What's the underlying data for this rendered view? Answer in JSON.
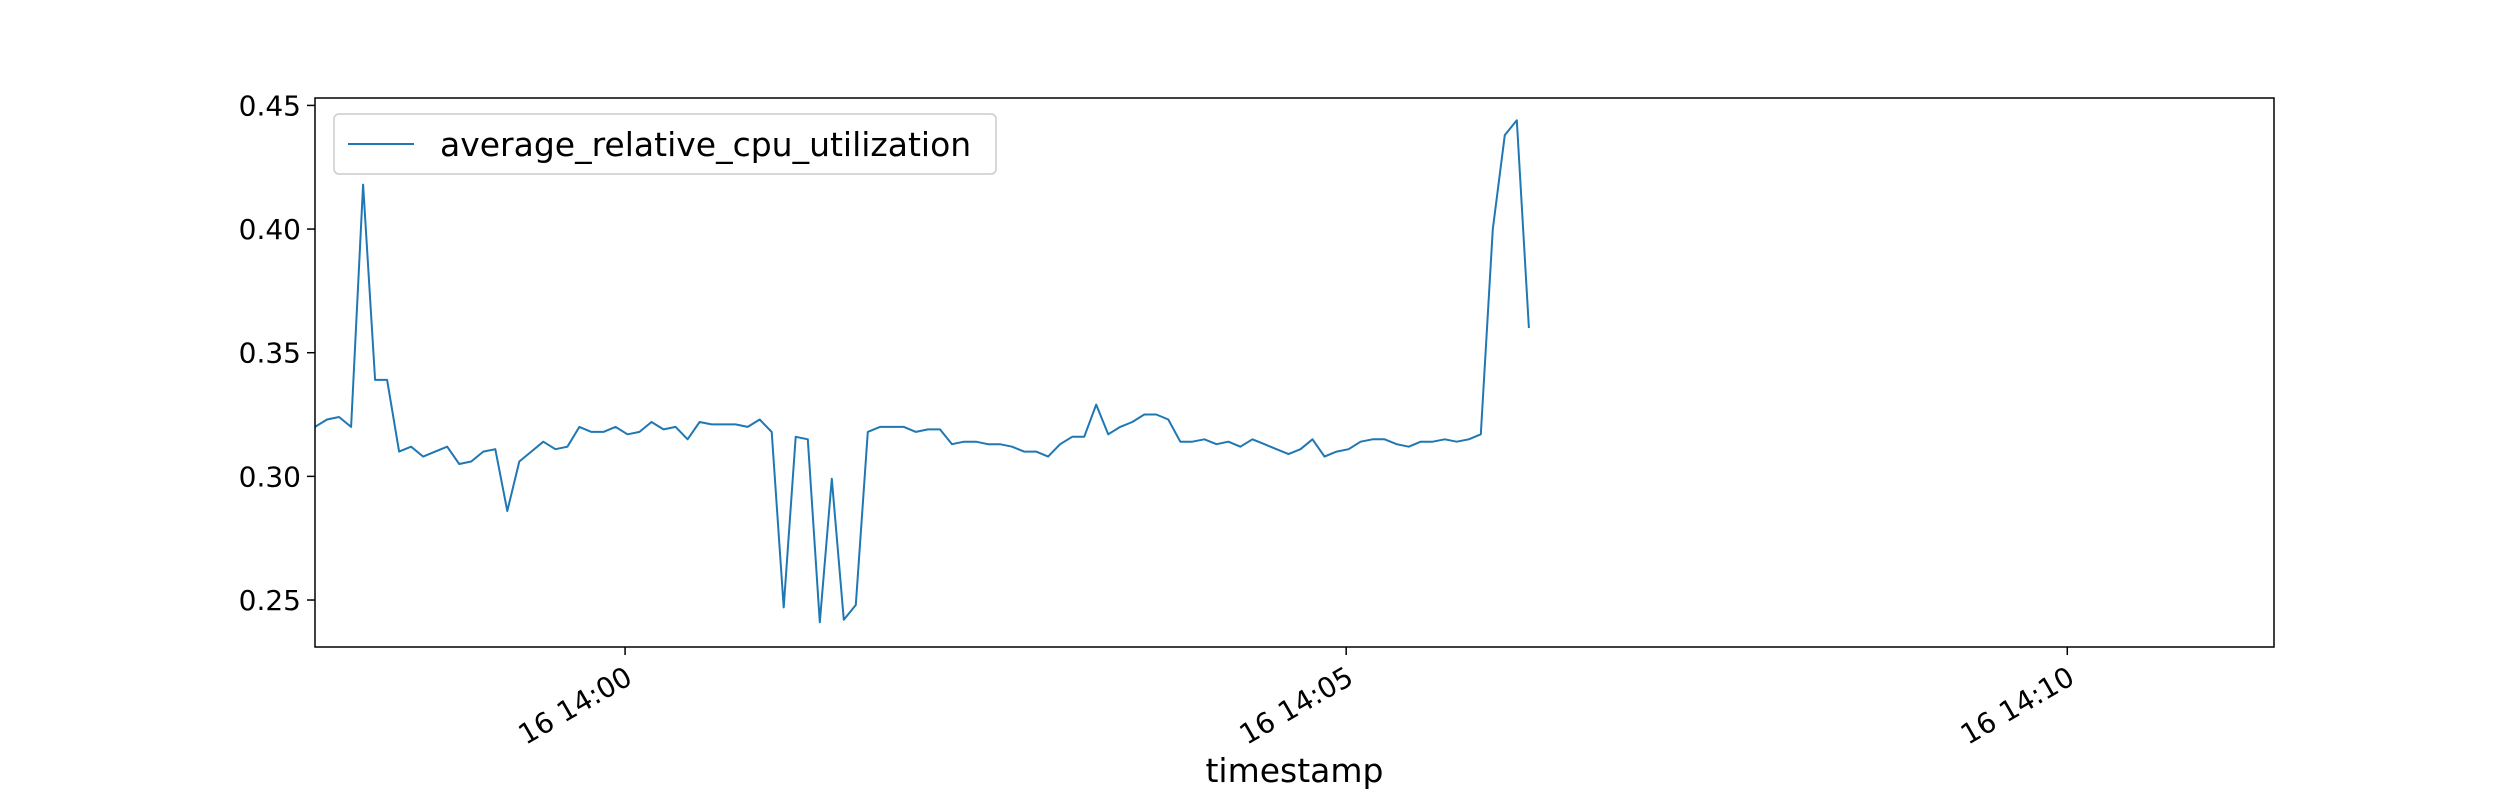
{
  "chart_data": {
    "type": "line",
    "title": "",
    "xlabel": "timestamp",
    "ylabel": "",
    "grid": false,
    "legend_placement": "upper-left",
    "x_start": "2024-01-16 13:57:51",
    "x_step_seconds": 5,
    "xlim": [
      "2024-01-16 13:57:51",
      "2024-01-16 14:11:26"
    ],
    "ylim": [
      0.231,
      0.453
    ],
    "x_ticks": [
      {
        "value": "2024-01-16 14:00:00",
        "label": "16 14:00"
      },
      {
        "value": "2024-01-16 14:05:00",
        "label": "16 14:05"
      },
      {
        "value": "2024-01-16 14:10:00",
        "label": "16 14:10"
      }
    ],
    "y_ticks": [
      {
        "value": 0.25,
        "label": "0.25"
      },
      {
        "value": 0.3,
        "label": "0.30"
      },
      {
        "value": 0.35,
        "label": "0.35"
      },
      {
        "value": 0.4,
        "label": "0.40"
      },
      {
        "value": 0.45,
        "label": "0.45"
      }
    ],
    "series": [
      {
        "name": "average_relative_cpu_utilization",
        "color": "#1f77b4",
        "values": [
          0.32,
          0.323,
          0.324,
          0.32,
          0.418,
          0.339,
          0.339,
          0.31,
          0.312,
          0.308,
          0.31,
          0.312,
          0.305,
          0.306,
          0.31,
          0.311,
          0.286,
          0.306,
          0.31,
          0.314,
          0.311,
          0.312,
          0.32,
          0.318,
          0.318,
          0.32,
          0.317,
          0.318,
          0.322,
          0.319,
          0.32,
          0.315,
          0.322,
          0.321,
          0.321,
          0.321,
          0.32,
          0.323,
          0.318,
          0.247,
          0.316,
          0.315,
          0.241,
          0.299,
          0.242,
          0.248,
          0.318,
          0.32,
          0.32,
          0.32,
          0.318,
          0.319,
          0.319,
          0.313,
          0.314,
          0.314,
          0.313,
          0.313,
          0.312,
          0.31,
          0.31,
          0.308,
          0.313,
          0.316,
          0.316,
          0.329,
          0.317,
          0.32,
          0.322,
          0.325,
          0.325,
          0.323,
          0.314,
          0.314,
          0.315,
          0.313,
          0.314,
          0.312,
          0.315,
          0.313,
          0.311,
          0.309,
          0.311,
          0.315,
          0.308,
          0.31,
          0.311,
          0.314,
          0.315,
          0.315,
          0.313,
          0.312,
          0.314,
          0.314,
          0.315,
          0.314,
          0.315,
          0.317,
          0.4,
          0.438,
          0.444,
          0.36
        ]
      }
    ]
  }
}
